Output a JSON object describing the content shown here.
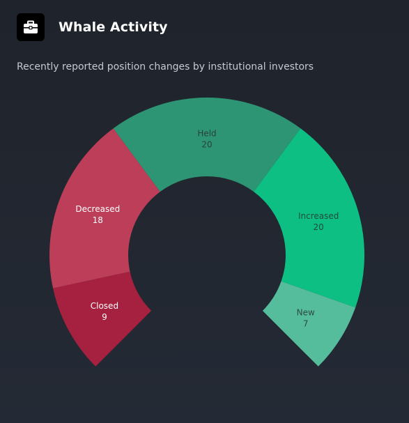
{
  "header": {
    "icon": "briefcase-icon",
    "title": "Whale Activity",
    "subtitle": "Recently reported position changes by institutional investors"
  },
  "chart_data": {
    "type": "pie",
    "variant": "semi-donut",
    "slices": [
      {
        "label": "Closed",
        "value": 9,
        "color": "#a6213f",
        "text_color": "#ffffff"
      },
      {
        "label": "Decreased",
        "value": 18,
        "color": "#bc3e58",
        "text_color": "#ffffff"
      },
      {
        "label": "Held",
        "value": 20,
        "color": "#2d9573",
        "text_color": "#2a4138"
      },
      {
        "label": "Increased",
        "value": 20,
        "color": "#0ebf84",
        "text_color": "#1e4c3c"
      },
      {
        "label": "New",
        "value": 7,
        "color": "#56bd9c",
        "text_color": "#2c4b41"
      }
    ]
  }
}
